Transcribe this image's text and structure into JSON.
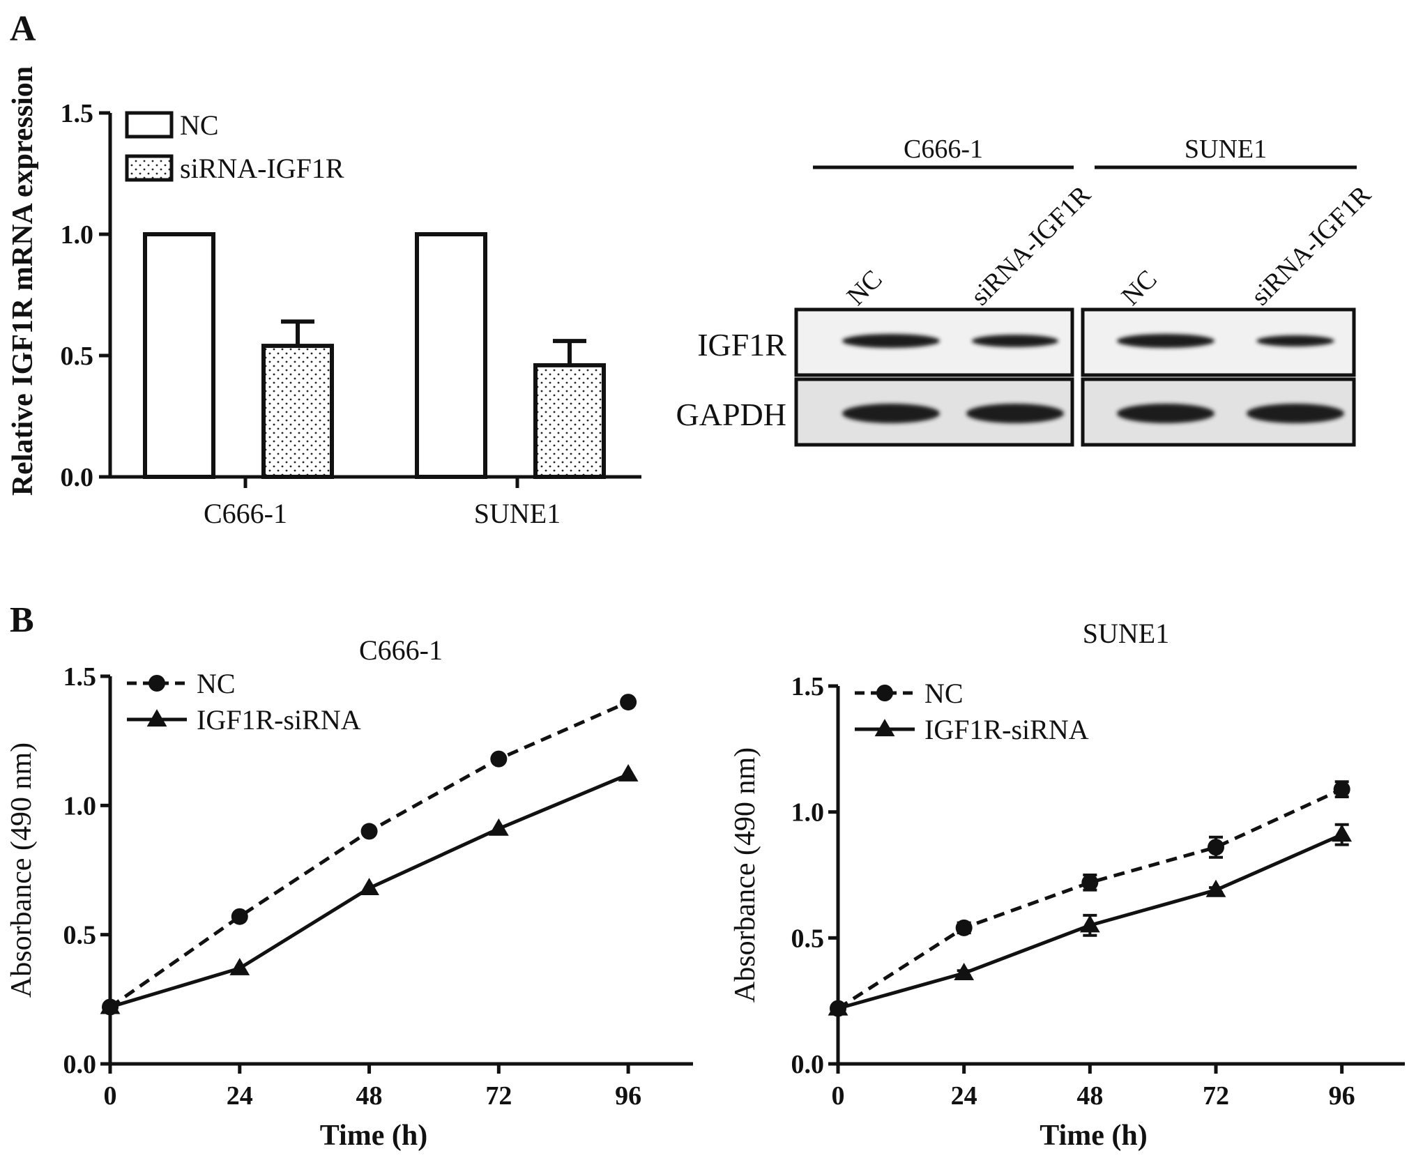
{
  "panels": {
    "a": "A",
    "b": "B"
  },
  "colors": {
    "ink": "#111111",
    "band": "#1a1a1a",
    "blot_bg": "#e2e2e2"
  },
  "chart_data": [
    {
      "type": "bar",
      "panel": "A",
      "title": "",
      "xlabel": "",
      "ylabel": "Relative IGF1R mRNA expression",
      "ylim": [
        0,
        1.5
      ],
      "yticks": [
        "0.0",
        "0.5",
        "1.0",
        "1.5"
      ],
      "categories": [
        "C666-1",
        "SUNE1"
      ],
      "series": [
        {
          "name": "NC",
          "fill": "open",
          "values": [
            1.0,
            1.0
          ],
          "error": [
            0,
            0
          ]
        },
        {
          "name": "siRNA-IGF1R",
          "fill": "dotted",
          "values": [
            0.54,
            0.46
          ],
          "error": [
            0.1,
            0.1
          ]
        }
      ],
      "legend": "top-left",
      "grid": false
    },
    {
      "type": "line",
      "panel": "B",
      "title": "C666-1",
      "xlabel": "Time (h)",
      "ylabel": "Absorbance (490 nm)",
      "x": [
        0,
        24,
        48,
        72,
        96
      ],
      "xticks": [
        "0",
        "24",
        "48",
        "72",
        "96"
      ],
      "xlim": [
        0,
        108
      ],
      "ylim": [
        0,
        1.5
      ],
      "yticks": [
        "0.0",
        "0.5",
        "1.0",
        "1.5"
      ],
      "series": [
        {
          "name": "NC",
          "style": "dashed",
          "marker": "circle",
          "values": [
            0.22,
            0.57,
            0.9,
            1.18,
            1.4
          ]
        },
        {
          "name": "IGF1R-siRNA",
          "style": "solid",
          "marker": "triangle",
          "values": [
            0.22,
            0.37,
            0.68,
            0.91,
            1.12
          ]
        }
      ],
      "legend": "top-left",
      "grid": false
    },
    {
      "type": "line",
      "panel": "B",
      "title": "SUNE1",
      "xlabel": "Time (h)",
      "ylabel": "Absorbance (490 nm)",
      "x": [
        0,
        24,
        48,
        72,
        96
      ],
      "xticks": [
        "0",
        "24",
        "48",
        "72",
        "96"
      ],
      "xlim": [
        0,
        108
      ],
      "ylim": [
        0,
        1.5
      ],
      "yticks": [
        "0.0",
        "0.5",
        "1.0",
        "1.5"
      ],
      "series": [
        {
          "name": "NC",
          "style": "dashed",
          "marker": "circle",
          "values": [
            0.22,
            0.54,
            0.72,
            0.86,
            1.09
          ],
          "error": [
            0,
            0.02,
            0.03,
            0.04,
            0.03
          ]
        },
        {
          "name": "IGF1R-siRNA",
          "style": "solid",
          "marker": "triangle",
          "values": [
            0.22,
            0.36,
            0.55,
            0.69,
            0.91
          ],
          "error": [
            0,
            0.01,
            0.04,
            0.01,
            0.04
          ]
        }
      ],
      "legend": "top-left",
      "grid": false
    }
  ],
  "western_blot": {
    "groups": [
      "C666-1",
      "SUNE1"
    ],
    "lanes": [
      "NC",
      "siRNA-IGF1R",
      "NC",
      "siRNA-IGF1R"
    ],
    "rows": [
      "IGF1R",
      "GAPDH"
    ],
    "band_intensity": {
      "IGF1R": [
        1.0,
        0.75,
        1.0,
        0.55
      ],
      "GAPDH": [
        1.0,
        1.0,
        1.0,
        1.0
      ]
    }
  }
}
